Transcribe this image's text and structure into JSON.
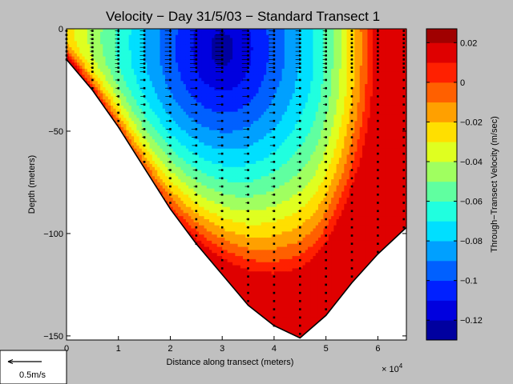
{
  "chart_data": {
    "type": "heatmap",
    "title": "Velocity − Day 31/5/03 − Standard Transect 1",
    "xlabel": "Distance along transect (meters)",
    "ylabel": "Depth (meters)",
    "x_multiplier": "× 10",
    "x_multiplier_exp": "4",
    "xlim": [
      0,
      65500
    ],
    "ylim": [
      -152,
      0
    ],
    "xticks": [
      {
        "v": 0,
        "label": "0"
      },
      {
        "v": 10000,
        "label": "1"
      },
      {
        "v": 20000,
        "label": "2"
      },
      {
        "v": 30000,
        "label": "3"
      },
      {
        "v": 40000,
        "label": "4"
      },
      {
        "v": 50000,
        "label": "5"
      },
      {
        "v": 60000,
        "label": "6"
      }
    ],
    "yticks": [
      {
        "v": 0,
        "label": "0"
      },
      {
        "v": -50,
        "label": "−50"
      },
      {
        "v": -100,
        "label": "−100"
      },
      {
        "v": -150,
        "label": "−150"
      }
    ],
    "bottom_profile": [
      [
        0,
        -15
      ],
      [
        5000,
        -30
      ],
      [
        10000,
        -48
      ],
      [
        15000,
        -68
      ],
      [
        20000,
        -88
      ],
      [
        25000,
        -105
      ],
      [
        30000,
        -120
      ],
      [
        35000,
        -135
      ],
      [
        40000,
        -145
      ],
      [
        45000,
        -151
      ],
      [
        50000,
        -140
      ],
      [
        55000,
        -124
      ],
      [
        60000,
        -110
      ],
      [
        65500,
        -97
      ]
    ],
    "core": {
      "x": 30000,
      "depth": 10,
      "value": -0.125
    },
    "right_bank_value": 0.005,
    "stations": [
      {
        "x": 0,
        "bottom": -15
      },
      {
        "x": 5000,
        "bottom": -30
      },
      {
        "x": 10000,
        "bottom": -48
      },
      {
        "x": 15000,
        "bottom": -68
      },
      {
        "x": 20000,
        "bottom": -88
      },
      {
        "x": 25000,
        "bottom": -105
      },
      {
        "x": 30000,
        "bottom": -120
      },
      {
        "x": 35000,
        "bottom": -135
      },
      {
        "x": 40000,
        "bottom": -145
      },
      {
        "x": 45000,
        "bottom": -151
      },
      {
        "x": 50000,
        "bottom": -140
      },
      {
        "x": 55000,
        "bottom": -124
      },
      {
        "x": 60000,
        "bottom": -110
      },
      {
        "x": 65000,
        "bottom": -98
      }
    ],
    "colorbar": {
      "label": "Through−Transect Velocity (m/sec)",
      "min": -0.13,
      "max": 0.027,
      "levels": [
        -0.13,
        -0.12,
        -0.11,
        -0.1,
        -0.09,
        -0.08,
        -0.07,
        -0.06,
        -0.05,
        -0.04,
        -0.03,
        -0.02,
        -0.01,
        0.0,
        0.01,
        0.02,
        0.027
      ],
      "colors": [
        "#00009f",
        "#0000df",
        "#0020ff",
        "#0060ff",
        "#00a0ff",
        "#00dfff",
        "#20ffdf",
        "#60ffa0",
        "#a0ff60",
        "#dfff20",
        "#ffdf00",
        "#ffa000",
        "#ff6000",
        "#ff2000",
        "#df0000",
        "#a00000"
      ],
      "ticks": [
        {
          "v": 0.02,
          "label": "0.02"
        },
        {
          "v": 0,
          "label": "0"
        },
        {
          "v": -0.02,
          "label": "−0.02"
        },
        {
          "v": -0.04,
          "label": "−0.04"
        },
        {
          "v": -0.06,
          "label": "−0.06"
        },
        {
          "v": -0.08,
          "label": "−0.08"
        },
        {
          "v": -0.1,
          "label": "−0.1"
        },
        {
          "v": -0.12,
          "label": "−0.12"
        }
      ]
    }
  },
  "legend_box": {
    "label": "0.5m/s",
    "value": 0.5
  }
}
